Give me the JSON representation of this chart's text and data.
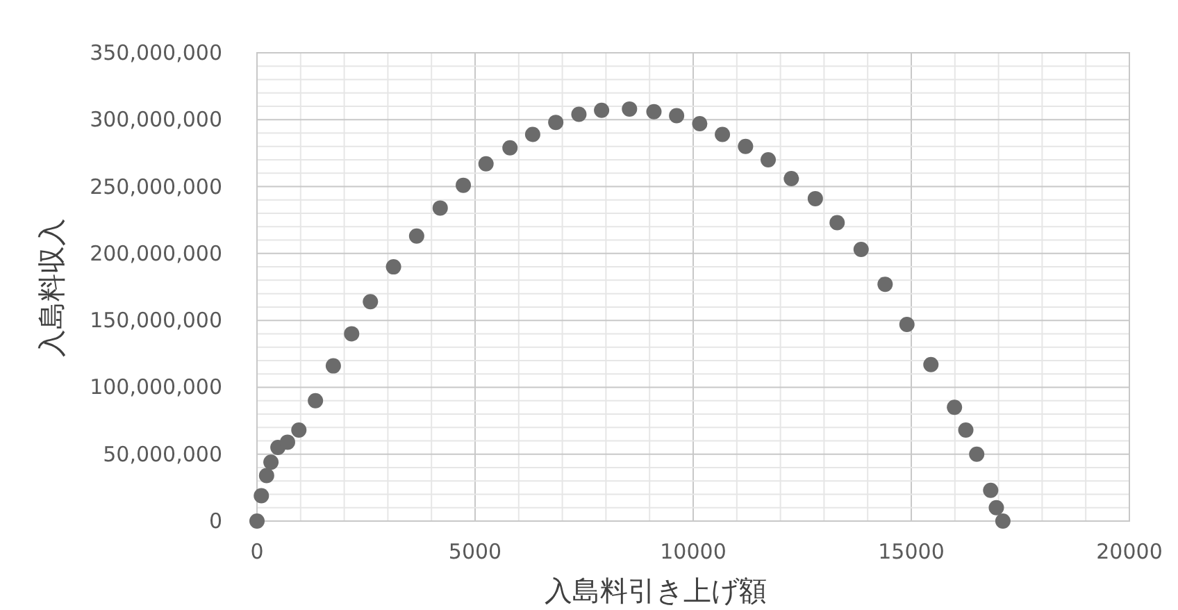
{
  "chart_data": {
    "type": "scatter",
    "xlabel": "入島料引き上げ額",
    "ylabel": "入島料収入",
    "color": "#6b6b6b",
    "marker": "circle",
    "grid": true,
    "xlim": [
      0,
      20000
    ],
    "ylim": [
      0,
      350000000
    ],
    "xticks": [
      0,
      {
        "value": 1000,
        "label": null
      },
      {
        "value": 2000,
        "label": null
      },
      {
        "value": 3000,
        "label": null
      },
      {
        "value": 4000,
        "label": null
      },
      5000,
      {
        "value": 6000,
        "label": null
      },
      {
        "value": 7000,
        "label": null
      },
      {
        "value": 8000,
        "label": null
      },
      {
        "value": 9000,
        "label": null
      },
      10000,
      {
        "value": 11000,
        "label": null
      },
      {
        "value": 12000,
        "label": null
      },
      {
        "value": 13000,
        "label": null
      },
      {
        "value": 14000,
        "label": null
      },
      15000,
      {
        "value": 16000,
        "label": null
      },
      {
        "value": 17000,
        "label": null
      },
      {
        "value": 18000,
        "label": null
      },
      {
        "value": 19000,
        "label": null
      },
      20000
    ],
    "yticks": [
      {
        "value": 0,
        "label": "0"
      },
      {
        "value": 10000000,
        "label": null
      },
      {
        "value": 20000000,
        "label": null
      },
      {
        "value": 30000000,
        "label": null
      },
      {
        "value": 40000000,
        "label": null
      },
      {
        "value": 50000000,
        "label": "50,000,000"
      },
      {
        "value": 60000000,
        "label": null
      },
      {
        "value": 70000000,
        "label": null
      },
      {
        "value": 80000000,
        "label": null
      },
      {
        "value": 90000000,
        "label": null
      },
      {
        "value": 100000000,
        "label": "100,000,000"
      },
      {
        "value": 110000000,
        "label": null
      },
      {
        "value": 120000000,
        "label": null
      },
      {
        "value": 130000000,
        "label": null
      },
      {
        "value": 140000000,
        "label": null
      },
      {
        "value": 150000000,
        "label": "150,000,000"
      },
      {
        "value": 160000000,
        "label": null
      },
      {
        "value": 170000000,
        "label": null
      },
      {
        "value": 180000000,
        "label": null
      },
      {
        "value": 190000000,
        "label": null
      },
      {
        "value": 200000000,
        "label": "200,000,000"
      },
      {
        "value": 210000000,
        "label": null
      },
      {
        "value": 220000000,
        "label": null
      },
      {
        "value": 230000000,
        "label": null
      },
      {
        "value": 240000000,
        "label": null
      },
      {
        "value": 250000000,
        "label": "250,000,000"
      },
      {
        "value": 260000000,
        "label": null
      },
      {
        "value": 270000000,
        "label": null
      },
      {
        "value": 280000000,
        "label": null
      },
      {
        "value": 290000000,
        "label": null
      },
      {
        "value": 300000000,
        "label": "300,000,000"
      },
      {
        "value": 310000000,
        "label": null
      },
      {
        "value": 320000000,
        "label": null
      },
      {
        "value": 330000000,
        "label": null
      },
      {
        "value": 340000000,
        "label": null
      },
      {
        "value": 350000000,
        "label": "350,000,000"
      }
    ],
    "x": [
      0,
      100,
      220,
      320,
      480,
      700,
      960,
      1340,
      1750,
      2170,
      2600,
      3130,
      3660,
      4200,
      4730,
      5250,
      5800,
      6320,
      6850,
      7380,
      7900,
      8540,
      9100,
      9620,
      10150,
      10670,
      11200,
      11720,
      12250,
      12800,
      13300,
      13850,
      14400,
      14900,
      15450,
      15990,
      16250,
      16500,
      16820,
      16950,
      17100
    ],
    "values": [
      0,
      19000000,
      34000000,
      44000000,
      55000000,
      59000000,
      68000000,
      90000000,
      116000000,
      140000000,
      164000000,
      190000000,
      213000000,
      234000000,
      251000000,
      267000000,
      279000000,
      289000000,
      298000000,
      304000000,
      307000000,
      308000000,
      306000000,
      303000000,
      297000000,
      289000000,
      280000000,
      270000000,
      256000000,
      241000000,
      223000000,
      203000000,
      177000000,
      147000000,
      117000000,
      85000000,
      68000000,
      50000000,
      23000000,
      10000000,
      0
    ]
  }
}
